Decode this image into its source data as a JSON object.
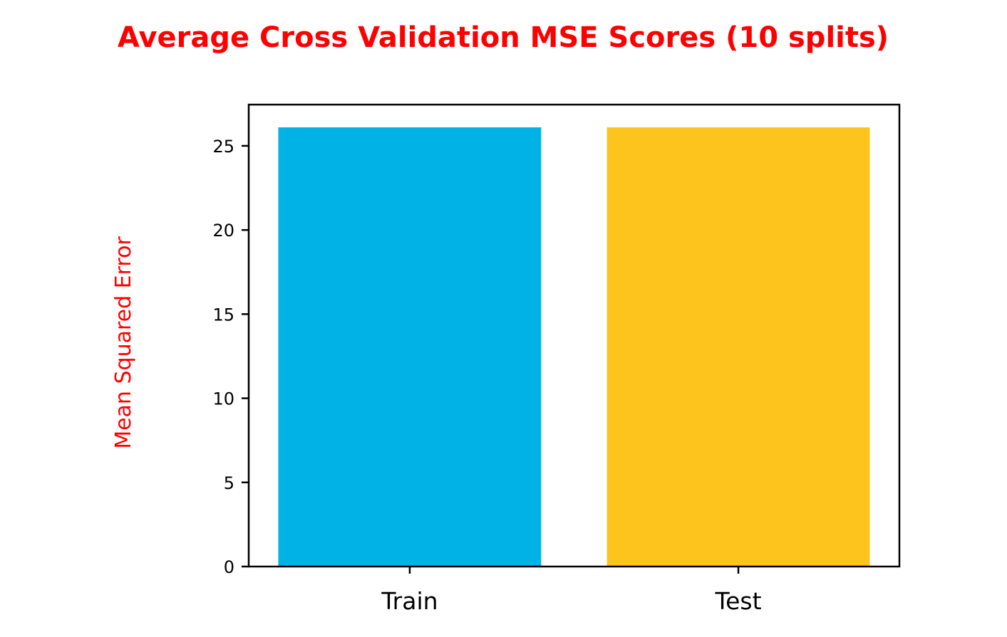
{
  "chart_data": {
    "type": "bar",
    "title": "Average Cross Validation MSE Scores (10 splits)",
    "ylabel": "Mean Squared Error",
    "xlabel": "",
    "categories": [
      "Train",
      "Test"
    ],
    "values": [
      26.1,
      26.1
    ],
    "bar_colors": [
      "#00b2e6",
      "#fdc41e"
    ],
    "ylim": [
      0,
      27.45
    ],
    "yticks": [
      0,
      5,
      10,
      15,
      20,
      25
    ],
    "grid": false,
    "title_color": "#ff0000",
    "ylabel_color": "#ff0000"
  }
}
